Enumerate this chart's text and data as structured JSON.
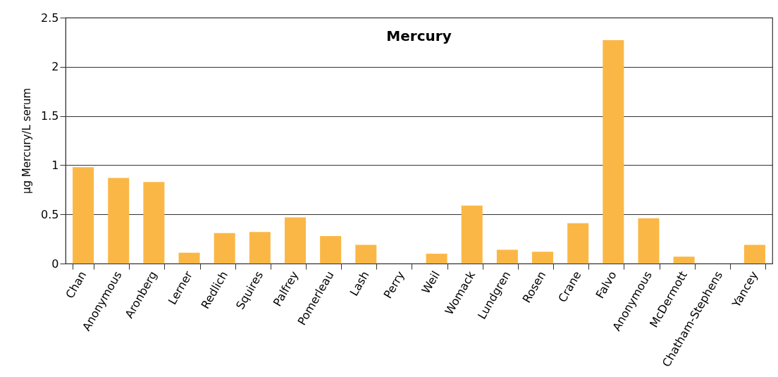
{
  "chart_data": {
    "type": "bar",
    "title": "Mercury",
    "ylabel": "µg Mercury/L serum",
    "categories": [
      "Chan",
      "Anonymous",
      "Aronberg",
      "Lerner",
      "Redlich",
      "Squires",
      "Palfrey",
      "Pomerleau",
      "Lash",
      "Perry",
      "Weil",
      "Womack",
      "Lundgren",
      "Rosen",
      "Crane",
      "Falvo",
      "Anonymous",
      "McDermott",
      "Chatham-Stephens",
      "Yancey"
    ],
    "values": [
      0.98,
      0.87,
      0.83,
      0.11,
      0.31,
      0.32,
      0.47,
      0.28,
      0.19,
      null,
      0.1,
      0.59,
      0.14,
      0.12,
      0.41,
      2.27,
      0.46,
      0.07,
      null,
      0.19
    ],
    "color": "#fbb745",
    "ylim": [
      0,
      2.5
    ],
    "yticks": [
      0,
      0.5,
      1,
      1.5,
      2,
      2.5
    ],
    "grid": "y"
  }
}
